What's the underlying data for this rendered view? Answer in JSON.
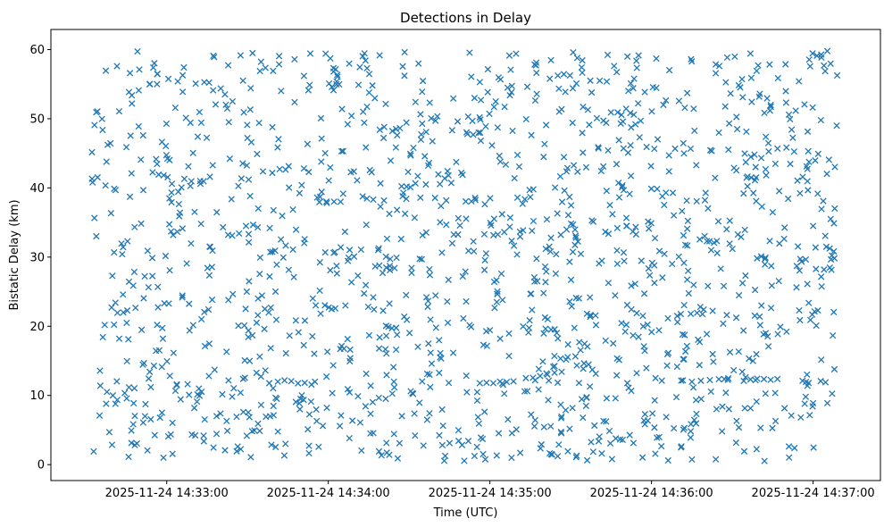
{
  "chart_data": {
    "type": "scatter",
    "title": "Detections in Delay",
    "xlabel": "Time (UTC)",
    "ylabel": "Bistatic Delay (km)",
    "marker": "x",
    "color": "#1f77b4",
    "grid": false,
    "xlim": [
      "2025-11-24 14:32:17",
      "2025-11-24 14:37:25"
    ],
    "ylim": [
      -2.3,
      62.9
    ],
    "x_ticks": [
      "2025-11-24 14:33:00",
      "2025-11-24 14:34:00",
      "2025-11-24 14:35:00",
      "2025-11-24 14:36:00",
      "2025-11-24 14:37:00"
    ],
    "y_ticks": [
      "0",
      "10",
      "20",
      "30",
      "40",
      "50",
      "60"
    ],
    "x_start": "2025-11-24 14:32:32",
    "x_end": "2025-11-24 14:37:09",
    "y_range": [
      0.5,
      59.8
    ],
    "point_count": 1500,
    "tracks": [
      {
        "start": "2025-11-24 14:33:40",
        "end": "2025-11-24 14:33:55",
        "delay_start": 12.2,
        "delay_end": 11.6
      },
      {
        "start": "2025-11-24 14:34:55",
        "end": "2025-11-24 14:35:10",
        "delay_start": 11.6,
        "delay_end": 12.1
      },
      {
        "start": "2025-11-24 14:35:12",
        "end": "2025-11-24 14:35:28",
        "delay_start": 12.4,
        "delay_end": 13.4
      },
      {
        "start": "2025-11-24 14:36:10",
        "end": "2025-11-24 14:36:30",
        "delay_start": 12.0,
        "delay_end": 12.3
      },
      {
        "start": "2025-11-24 14:36:33",
        "end": "2025-11-24 14:36:48",
        "delay_start": 12.2,
        "delay_end": 12.4
      }
    ]
  }
}
